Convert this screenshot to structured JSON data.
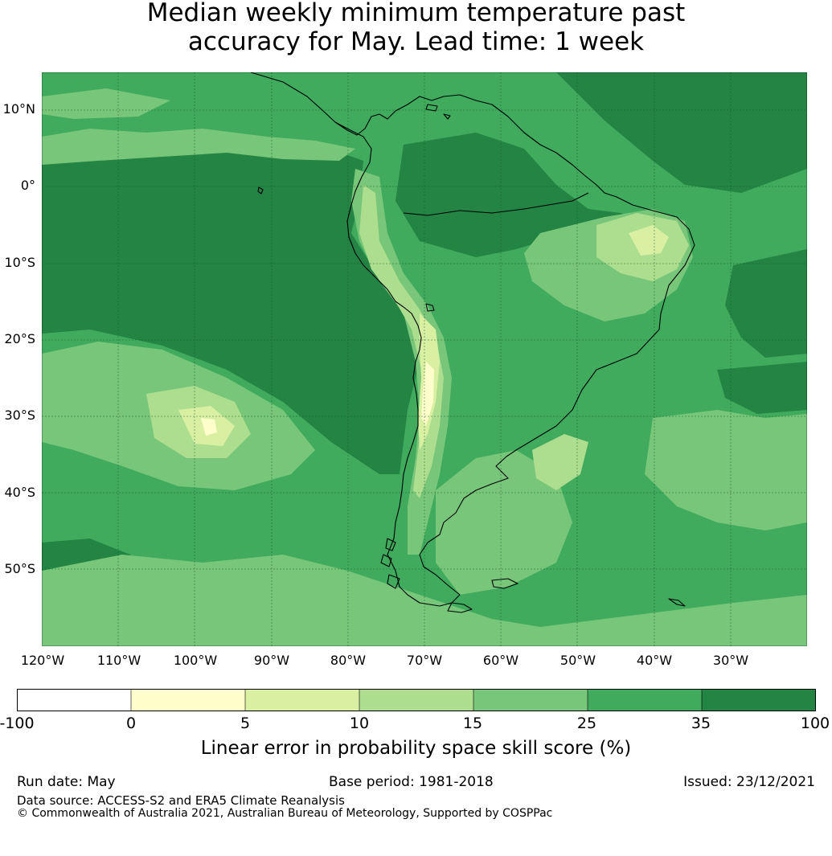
{
  "title_line1": "Median weekly minimum temperature past",
  "title_line2": "accuracy for May. Lead time: 1 week",
  "map": {
    "region": "South America",
    "lat_labels": [
      "10°N",
      "0°",
      "10°S",
      "20°S",
      "30°S",
      "40°S",
      "50°S"
    ],
    "lon_labels": [
      "120°W",
      "110°W",
      "100°W",
      "90°W",
      "80°W",
      "70°W",
      "60°W",
      "50°W",
      "40°W",
      "30°W"
    ],
    "extent": {
      "lon_min": -120,
      "lon_max": -20,
      "lat_min": -60,
      "lat_max": 15
    },
    "gridlines": true,
    "coastline_color": "#000000"
  },
  "colorbar": {
    "tick_labels": [
      "-100",
      "0",
      "5",
      "10",
      "15",
      "25",
      "35",
      "100"
    ],
    "colors": [
      "#ffffff",
      "#ffffcc",
      "#d9f0a3",
      "#addd8e",
      "#78c679",
      "#41ab5d",
      "#238443"
    ],
    "label": "Linear error in probability space skill score (%)"
  },
  "footer": {
    "run_date": "Run date: May",
    "base_period": "Base period: 1981-2018",
    "issued": "Issued: 23/12/2021",
    "data_source": "Data source: ACCESS-S2 and ERA5 Climate Reanalysis",
    "copyright": "© Commonwealth of Australia 2021, Australian Bureau of Meteorology, Supported by COSPPac"
  }
}
